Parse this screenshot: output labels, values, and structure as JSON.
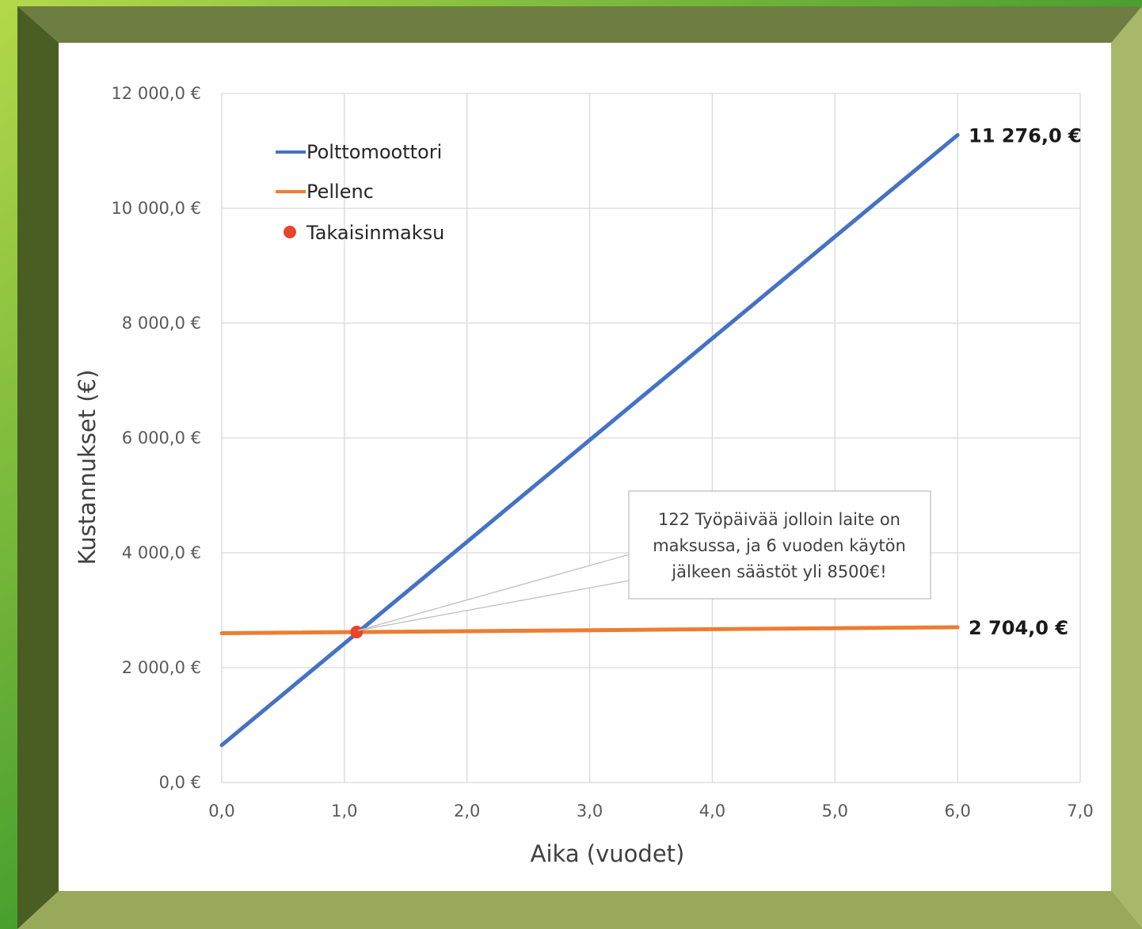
{
  "colors": {
    "polttomoottori": "#4472c4",
    "pellenc": "#ed7d31",
    "takaisinmaksu": "#e8452c",
    "grid": "#d9d9d9",
    "frame_top": "#6e7d41",
    "frame_left": "#4a5d23",
    "frame_right": "#a7b86b",
    "frame_bottom": "#98a95c"
  },
  "chart_data": {
    "type": "line",
    "title": "",
    "xlabel": "Aika (vuodet)",
    "ylabel": "Kustannukset (€)",
    "xlim": [
      0,
      7
    ],
    "ylim": [
      0,
      12000
    ],
    "x_ticks": [
      0,
      1,
      2,
      3,
      4,
      5,
      6,
      7
    ],
    "x_tick_labels": [
      "0,0",
      "1,0",
      "2,0",
      "3,0",
      "4,0",
      "5,0",
      "6,0",
      "7,0"
    ],
    "y_ticks": [
      0,
      2000,
      4000,
      6000,
      8000,
      10000,
      12000
    ],
    "y_tick_labels": [
      "0,0 €",
      "2 000,0 €",
      "4 000,0 €",
      "6 000,0 €",
      "8 000,0 €",
      "10 000,0 €",
      "12 000,0 €"
    ],
    "grid": true,
    "legend_position": "top-left",
    "series": [
      {
        "name": "Polttomoottori",
        "type": "line",
        "color": "#4472c4",
        "x": [
          0,
          6
        ],
        "y": [
          650,
          11276
        ]
      },
      {
        "name": "Pellenc",
        "type": "line",
        "color": "#ed7d31",
        "x": [
          0,
          6
        ],
        "y": [
          2600,
          2704
        ]
      },
      {
        "name": "Takaisinmaksu",
        "type": "scatter",
        "color": "#e8452c",
        "x": [
          1.1
        ],
        "y": [
          2620
        ]
      }
    ],
    "end_labels": [
      {
        "series": "Polttomoottori",
        "text": "11 276,0 €"
      },
      {
        "series": "Pellenc",
        "text": "2 704,0 €"
      }
    ],
    "annotation": {
      "lines": [
        "122 Työpäivää jolloin laite on",
        "maksussa, ja 6 vuoden käytön",
        "jälkeen säästöt yli 8500€!"
      ],
      "points_to": "Takaisinmaksu"
    }
  }
}
